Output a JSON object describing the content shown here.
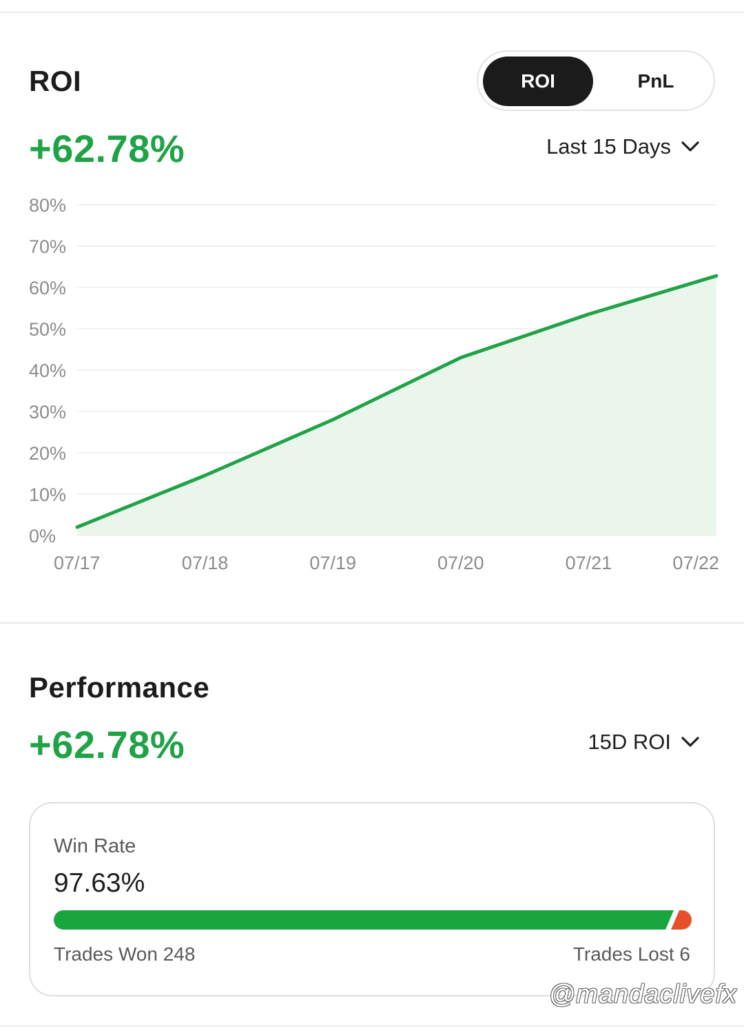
{
  "roi_section": {
    "title": "ROI",
    "value": "+62.78%",
    "toggle": {
      "active": "ROI",
      "inactive": "PnL"
    },
    "range_dropdown": "Last 15 Days"
  },
  "chart_data": {
    "type": "area",
    "x": [
      "07/17",
      "07/18",
      "07/19",
      "07/20",
      "07/21",
      "07/22"
    ],
    "values": [
      2,
      14.5,
      28,
      43,
      53.5,
      62.78
    ],
    "ylim": [
      0,
      80
    ],
    "yticks": [
      "0%",
      "10%",
      "20%",
      "30%",
      "40%",
      "50%",
      "60%",
      "70%",
      "80%"
    ],
    "grid": true,
    "colors": {
      "line": "#1fa346",
      "fill": "#eaf6ec"
    }
  },
  "performance": {
    "title": "Performance",
    "value": "+62.78%",
    "metric_dropdown": "15D ROI",
    "win_rate_label": "Win Rate",
    "win_rate": "97.63%",
    "win_fraction": 0.9763,
    "trades_won": "Trades Won 248",
    "trades_lost": "Trades Lost 6",
    "colors": {
      "won": "#1aa63f",
      "lost": "#e5502a"
    }
  },
  "watermark": "@mandaclivefx"
}
